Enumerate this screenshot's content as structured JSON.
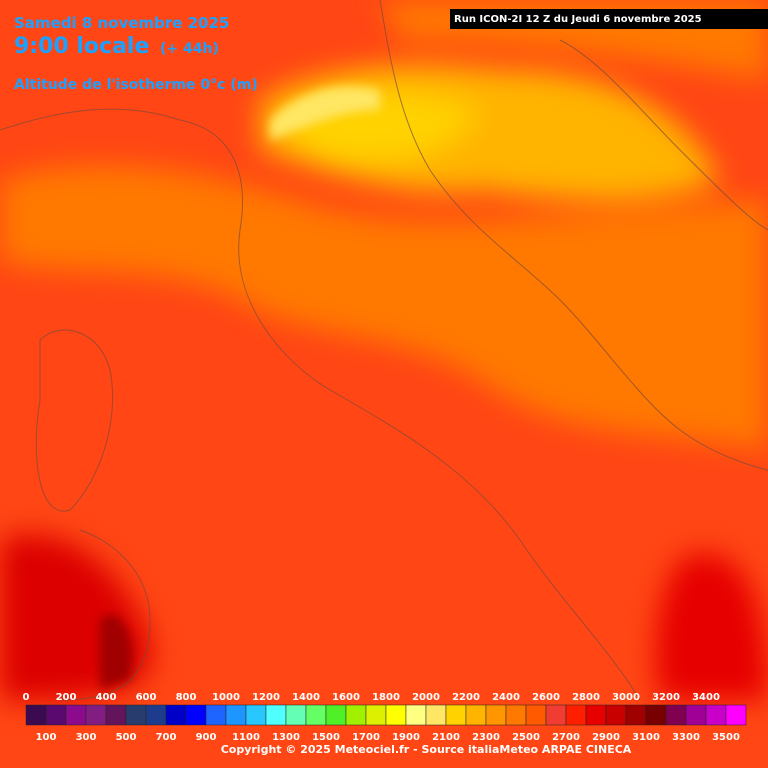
{
  "header": {
    "date": "Samedi 8 novembre 2025",
    "time": "9:00 locale",
    "lead": "(+ 44h)",
    "parameter": "Altitude de l'isotherme 0°c (m)",
    "run": "Run ICON-2I 12 Z du Jeudi 6 novembre 2025"
  },
  "legend": {
    "labels_top": [
      0,
      200,
      400,
      600,
      800,
      1000,
      1200,
      1400,
      1600,
      1800,
      2000,
      2200,
      2400,
      2600,
      2800,
      3000,
      3200,
      3400
    ],
    "labels_bottom": [
      100,
      300,
      500,
      700,
      900,
      1100,
      1300,
      1500,
      1700,
      1900,
      2100,
      2300,
      2500,
      2700,
      2900,
      3100,
      3300,
      3500
    ],
    "colors": [
      "#3c0a50",
      "#5a0a6e",
      "#8c0a8c",
      "#821e82",
      "#64145a",
      "#283c6e",
      "#1e3c8c",
      "#0000c8",
      "#0000ff",
      "#1e64ff",
      "#1e96ff",
      "#28c8ff",
      "#50ffff",
      "#64ffb4",
      "#64ff64",
      "#50f028",
      "#a0f000",
      "#dcf000",
      "#ffff00",
      "#ffff82",
      "#ffe664",
      "#ffd200",
      "#ffb400",
      "#ff9600",
      "#ff7800",
      "#ff5a00",
      "#f03c32",
      "#ff1e00",
      "#e60000",
      "#c80000",
      "#a00000",
      "#780000",
      "#820050",
      "#a00096",
      "#c800c8",
      "#ff00ff"
    ]
  },
  "footer": {
    "copyright": "Copyright © 2025 Meteociel.fr - Source italiaMeteo ARPAE CINECA"
  }
}
